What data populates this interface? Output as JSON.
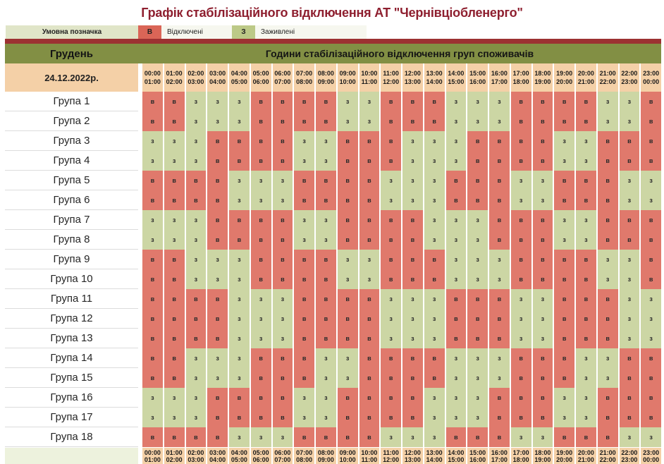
{
  "title": "Графік стабілізаційного відключення АТ \"Чернівціобленерго\"",
  "legend": {
    "label": "Умовна позначка",
    "items": [
      {
        "symbol": "В",
        "label": "Відключені",
        "state": "off"
      },
      {
        "symbol": "З",
        "label": "Заживлені",
        "state": "on"
      }
    ]
  },
  "table": {
    "month": "Грудень",
    "header": "Години стабілізаційного відключення груп споживачів",
    "date": "24.12.2022р."
  },
  "states": {
    "off_symbol": "в",
    "on_symbol": "з"
  },
  "colors": {
    "title": "#8e1f2f",
    "strip": "#9c3132",
    "olive": "#828f44",
    "peach": "#f4d0a7",
    "off": "#e0796c",
    "on": "#ccd6a4",
    "legend_band": "#e0e5c8",
    "legend_off": "#da6557",
    "legend_on": "#bcc987",
    "legend_light": "#f6f7ef",
    "bottom_label": "#edf2dd"
  },
  "chart_data": {
    "type": "heatmap",
    "title": "Графік стабілізаційного відключення АТ \"Чернівціобленерго\"",
    "legend": {
      "в": "Відключені",
      "з": "Заживлені"
    },
    "x_labels_start": [
      "00:00",
      "01:00",
      "02:00",
      "03:00",
      "04:00",
      "05:00",
      "06:00",
      "07:00",
      "08:00",
      "09:00",
      "10:00",
      "11:00",
      "12:00",
      "13:00",
      "14:00",
      "15:00",
      "16:00",
      "17:00",
      "18:00",
      "19:00",
      "20:00",
      "21:00",
      "22:00",
      "23:00"
    ],
    "x_labels_end": [
      "01:00",
      "02:00",
      "03:00",
      "04:00",
      "05:00",
      "06:00",
      "07:00",
      "08:00",
      "09:00",
      "10:00",
      "11:00",
      "12:00",
      "13:00",
      "14:00",
      "15:00",
      "16:00",
      "17:00",
      "18:00",
      "19:00",
      "20:00",
      "21:00",
      "22:00",
      "23:00",
      "00:00"
    ],
    "rows": [
      {
        "label": "Група 1",
        "cells": "ввзззввввззвввзззввввззв"
      },
      {
        "label": "Група 2",
        "cells": "ввзззввввззвввзззввввззв"
      },
      {
        "label": "Група 3",
        "cells": "зззввввззвввзззввввззввв"
      },
      {
        "label": "Група 4",
        "cells": "зззввввззвввзззввввззввв"
      },
      {
        "label": "Група 5",
        "cells": "ввввзззввввзззвввззвввзз"
      },
      {
        "label": "Група 6",
        "cells": "ввввзззввввзззвввззвввзз"
      },
      {
        "label": "Група 7",
        "cells": "зззввввззввввзззвввззввв"
      },
      {
        "label": "Група 8",
        "cells": "зззввввззввввзззвввззввв"
      },
      {
        "label": "Група 9",
        "cells": "ввзззввввззвввзззввввззв"
      },
      {
        "label": "Група 10",
        "cells": "ввзззввввззвввзззввввззв"
      },
      {
        "label": "Група 11",
        "cells": "ввввзззввввзззвввззвввзз"
      },
      {
        "label": "Група 12",
        "cells": "ввввзззввввзззвввззвввзз"
      },
      {
        "label": "Група 13",
        "cells": "ввввзззввввзззвввззвввзз"
      },
      {
        "label": "Група 14",
        "cells": "ввзззвввззввввзззвввззвв"
      },
      {
        "label": "Група 15",
        "cells": "ввзззвввззввввзззвввззвв"
      },
      {
        "label": "Група 16",
        "cells": "зззввввззввввзззвввззввв"
      },
      {
        "label": "Група 17",
        "cells": "зззввввззввввзззвввззввв"
      },
      {
        "label": "Група 18",
        "cells": "ввввзззввввзззвввззвввзз"
      }
    ]
  }
}
